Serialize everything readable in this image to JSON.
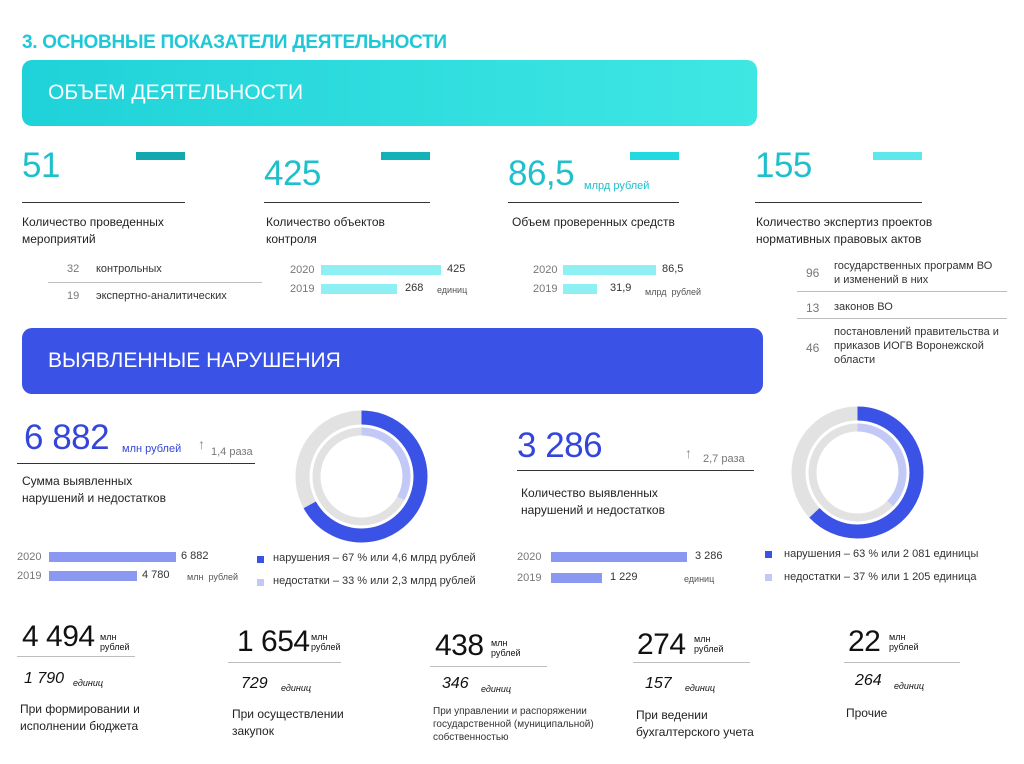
{
  "title": "3. ОСНОВНЫЕ ПОКАЗАТЕЛИ ДЕЯТЕЛЬНОСТИ",
  "section1": {
    "label": "ОБЪЕМ ДЕЯТЕЛЬНОСТИ",
    "color": "#1fd2d9"
  },
  "section2": {
    "label": "ВЫЯВЛЕННЫЕ НАРУШЕНИЯ",
    "color": "#3b52e6"
  },
  "kpi1": {
    "value": "51",
    "label_line1": "Количество проведенных",
    "label_line2": "мероприятий",
    "items": [
      {
        "num": "32",
        "text": "контрольных"
      },
      {
        "num": "19",
        "text": "экспертно-аналитических"
      }
    ]
  },
  "kpi2": {
    "value": "425",
    "label_line1": "Количество объектов",
    "label_line2": "контроля",
    "unit": "единиц"
  },
  "kpi3": {
    "value": "86,5",
    "unit": "млрд рублей",
    "label_line1": "Объем проверенных средств",
    "chart_unit_1": "млрд",
    "chart_unit_2": "рублей"
  },
  "kpi4": {
    "value": "155",
    "label_line1": "Количество экспертиз проектов",
    "label_line2": "нормативных правовых актов",
    "items": [
      {
        "num": "96",
        "l1": "государственных программ ВО",
        "l2": "и изменений в них",
        "l3": ""
      },
      {
        "num": "13",
        "l1": "законов ВО",
        "l2": "",
        "l3": ""
      },
      {
        "num": "46",
        "l1": "постановлений правительства и",
        "l2": "приказов ИОГВ Воронежской",
        "l3": "области"
      }
    ]
  },
  "viol_sum": {
    "value": "6 882",
    "unit": "млн рублей",
    "growth": "1,4 раза",
    "label_line1": "Сумма выявленных",
    "label_line2": "нарушений и недостатков",
    "chart_unit_1": "млн",
    "chart_unit_2": "рублей",
    "legend": [
      "нарушения – 67 % или 4,6 млрд рублей",
      "недостатки – 33 % или 2,3 млрд рублей"
    ]
  },
  "viol_count": {
    "value": "3 286",
    "growth": "2,7 раза",
    "label_line1": "Количество выявленных",
    "label_line2": "нарушений и недостатков",
    "unit": "единиц",
    "legend": [
      "нарушения – 63 % или 2 081 единицы",
      "недостатки – 37 % или 1 205 единица"
    ]
  },
  "categories": [
    {
      "value": "4 494",
      "u1": "млн",
      "u2": "рублей",
      "sub": "1 790",
      "sub_unit": "единиц",
      "l1": "При формировании и",
      "l2": "исполнении бюджета",
      "l3": ""
    },
    {
      "value": "1 654",
      "u1": "млн",
      "u2": "рублей",
      "sub": "729",
      "sub_unit": "единиц",
      "l1": "При осуществлении",
      "l2": "закупок",
      "l3": ""
    },
    {
      "value": "438",
      "u1": "млн",
      "u2": "рублей",
      "sub": "346",
      "sub_unit": "единиц",
      "l1": "При управлении  и распоряжении",
      "l2": "государственной (муниципальной)",
      "l3": "собственностью"
    },
    {
      "value": "274",
      "u1": "млн",
      "u2": "рублей",
      "sub": "157",
      "sub_unit": "единиц",
      "l1": "При ведении",
      "l2": "бухгалтерского учета",
      "l3": ""
    },
    {
      "value": "22",
      "u1": "млн",
      "u2": "рублей",
      "sub": "264",
      "sub_unit": "единиц",
      "l1": "Прочие",
      "l2": "",
      "l3": ""
    }
  ],
  "chart_data": [
    {
      "type": "bar",
      "categories": [
        "2020",
        "2019"
      ],
      "values": [
        425,
        268
      ],
      "xlim": [
        0,
        425
      ],
      "color": "#8ff0f4"
    },
    {
      "type": "bar",
      "categories": [
        "2020",
        "2019"
      ],
      "values": [
        86.5,
        31.9
      ],
      "labels": [
        "86,5",
        "31,9"
      ],
      "xlim": [
        0,
        86.5
      ],
      "color": "#8ff0f4"
    },
    {
      "type": "bar",
      "categories": [
        "2020",
        "2019"
      ],
      "values": [
        6882,
        4780
      ],
      "labels": [
        "6 882",
        "4 780"
      ],
      "xlim": [
        0,
        6882
      ],
      "color": "#8a98f2"
    },
    {
      "type": "bar",
      "categories": [
        "2020",
        "2019"
      ],
      "values": [
        3286,
        1229
      ],
      "labels": [
        "3 286",
        "1 229"
      ],
      "xlim": [
        0,
        3286
      ],
      "color": "#8a98f2"
    },
    {
      "type": "pie",
      "categories": [
        "нарушения",
        "недостатки"
      ],
      "values": [
        67,
        33
      ],
      "colors": [
        "#3b52e6",
        "#c3c9f7"
      ]
    },
    {
      "type": "pie",
      "categories": [
        "нарушения",
        "недостатки"
      ],
      "values": [
        63,
        37
      ],
      "colors": [
        "#3b52e6",
        "#c3c9f7"
      ]
    }
  ]
}
